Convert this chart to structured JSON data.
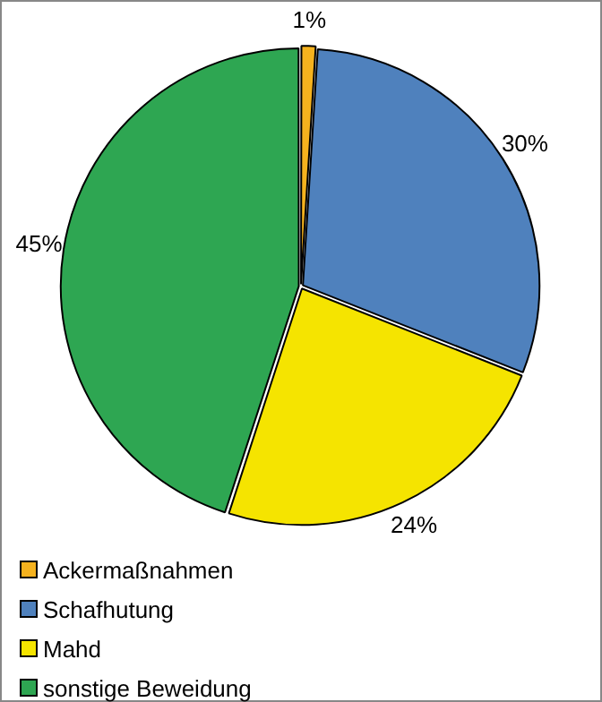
{
  "chart_data": {
    "type": "pie",
    "categories": [
      "Ackermaßnahmen",
      "Schafhutung",
      "Mahd",
      "sonstige Beweidung"
    ],
    "values": [
      1,
      30,
      24,
      45
    ],
    "colors": [
      "#f5b21e",
      "#4f81bd",
      "#f5e400",
      "#2ea652"
    ],
    "value_labels": [
      "1%",
      "30%",
      "24%",
      "45%"
    ],
    "legend": "bottom left"
  }
}
